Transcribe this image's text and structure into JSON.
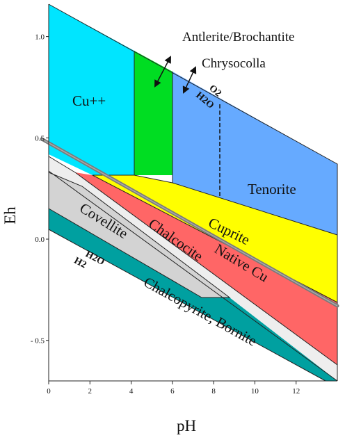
{
  "axes": {
    "xlabel": "pH",
    "ylabel": "Eh",
    "xlim": [
      0,
      14
    ],
    "ylim": [
      -0.7,
      1.16
    ],
    "x_ticks": [
      0,
      2,
      4,
      6,
      8,
      10,
      12
    ],
    "y_ticks": [
      {
        "value": 1.0,
        "label": "1.0"
      },
      {
        "value": 0.5,
        "label": "0.5"
      },
      {
        "value": 0.0,
        "label": "0.0"
      },
      {
        "value": -0.5,
        "label": "- 0.5"
      }
    ]
  },
  "regions": [
    {
      "key": "cu2",
      "label": "Cu++",
      "color": "#00e5ff"
    },
    {
      "key": "antlerite",
      "label": "Antlerite/Brochantite",
      "color": "#00dd22"
    },
    {
      "key": "chrysocolla",
      "label": "Chrysocolla",
      "color": "#66aaff"
    },
    {
      "key": "tenorite",
      "label": "Tenorite",
      "color": "#66aaff"
    },
    {
      "key": "cuprite",
      "label": "Cuprite",
      "color": "#ffff00"
    },
    {
      "key": "native_cu",
      "label": "Native Cu",
      "color": "#ff6666"
    },
    {
      "key": "chalcocite",
      "label": "Chalcocite",
      "color": "#eeeeee"
    },
    {
      "key": "covellite",
      "label": "Covellite",
      "color": "#d3d3d3"
    },
    {
      "key": "chalcopyrite",
      "label": "Chalcopyrite, Bornite",
      "color": "#00a0a0"
    }
  ],
  "water_lines": {
    "upper": {
      "top": "O2",
      "bottom": "H2O"
    },
    "lower": {
      "top": "H2O",
      "bottom": "H2"
    }
  }
}
